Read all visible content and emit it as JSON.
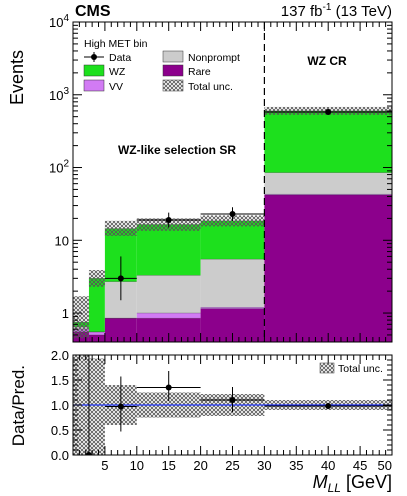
{
  "header": {
    "experiment": "CMS",
    "lumi_prefix": "137 fb",
    "lumi_exp": "-1",
    "lumi_suffix": " (13 TeV)"
  },
  "colors": {
    "WZ": "#1de01d",
    "VV": "#d27bf4",
    "Nonprompt": "#cccccc",
    "Rare": "#8c008c",
    "ratio_line": "#1a2ef5",
    "data": "#000000"
  },
  "legend": {
    "title": "High MET bin",
    "entries": [
      {
        "key": "Data",
        "label": "Data",
        "kind": "marker"
      },
      {
        "key": "Nonprompt",
        "label": "Nonprompt",
        "kind": "fill"
      },
      {
        "key": "WZ",
        "label": "WZ",
        "kind": "fill"
      },
      {
        "key": "Rare",
        "label": "Rare",
        "kind": "fill"
      },
      {
        "key": "VV",
        "label": "VV",
        "kind": "fill"
      },
      {
        "key": "Total",
        "label": "Total unc.",
        "kind": "hatch"
      }
    ]
  },
  "annotations": {
    "sr": "WZ-like selection SR",
    "cr": "WZ CR"
  },
  "chart_data": {
    "type": "bar",
    "stacked": true,
    "ylog": true,
    "xlabel_main": "M",
    "xlabel_sub": "LL",
    "xlabel_unit": " [GeV]",
    "ylabel": "Events",
    "ratio_ylabel": "Data/Pred.",
    "ratio_legend": "Total unc.",
    "xlim": [
      0,
      50
    ],
    "ylim": [
      0.4,
      10000
    ],
    "ratio_ylim": [
      0,
      2
    ],
    "cr_boundary_x": 30,
    "bin_edges": [
      0,
      2.5,
      5,
      10,
      20,
      30,
      50
    ],
    "series": [
      {
        "name": "Rare",
        "values": [
          0.55,
          0.5,
          0.85,
          0.85,
          1.15,
          42
        ]
      },
      {
        "name": "VV",
        "values": [
          0.6,
          0.55,
          0.85,
          1.0,
          1.2,
          43
        ]
      },
      {
        "name": "Nonprompt",
        "values": [
          0.65,
          0.55,
          2.7,
          3.3,
          5.5,
          85
        ]
      },
      {
        "name": "WZ",
        "values": [
          0.75,
          3.0,
          14.5,
          16.5,
          18.5,
          600
        ]
      }
    ],
    "total_unc": [
      {
        "lo": 0.45,
        "hi": 1.7
      },
      {
        "lo": 2.3,
        "hi": 3.9
      },
      {
        "lo": 11.5,
        "hi": 18.5
      },
      {
        "lo": 13.5,
        "hi": 20.0
      },
      {
        "lo": 15.5,
        "hi": 22.0
      },
      {
        "lo": 530,
        "hi": 680
      }
    ],
    "data_points": [
      {
        "x": 7.5,
        "y": 3.0,
        "ylo": 1.5,
        "yhi": 6.0,
        "xerr": 2.5
      },
      {
        "x": 15,
        "y": 19.0,
        "ylo": 15.0,
        "yhi": 24.0,
        "xerr": 5
      },
      {
        "x": 25,
        "y": 23.0,
        "ylo": 18.5,
        "yhi": 28.5,
        "xerr": 5
      },
      {
        "x": 40,
        "y": 580,
        "ylo": 555,
        "yhi": 605,
        "xerr": 10
      }
    ],
    "ratio_points": [
      {
        "x": 2.5,
        "y": 0.0,
        "ylo": 0.0,
        "yhi": 2.0,
        "xerr": 0
      },
      {
        "x": 7.5,
        "y": 0.97,
        "ylo": 0.47,
        "yhi": 1.57,
        "xerr": 2.5
      },
      {
        "x": 15,
        "y": 1.35,
        "ylo": 1.08,
        "yhi": 1.68,
        "xerr": 5
      },
      {
        "x": 25,
        "y": 1.1,
        "ylo": 0.86,
        "yhi": 1.36,
        "xerr": 5
      },
      {
        "x": 40,
        "y": 0.98,
        "ylo": 0.94,
        "yhi": 1.02,
        "xerr": 10
      }
    ],
    "ratio_unc": [
      {
        "lo": 0.0,
        "hi": 2.0
      },
      {
        "lo": 0.0,
        "hi": 1.93
      },
      {
        "lo": 0.6,
        "hi": 1.4
      },
      {
        "lo": 0.75,
        "hi": 1.25
      },
      {
        "lo": 0.78,
        "hi": 1.22
      },
      {
        "lo": 0.9,
        "hi": 1.1
      }
    ],
    "y_ticks": [
      {
        "value": 1,
        "label": "1"
      },
      {
        "value": 10,
        "label": "10"
      },
      {
        "value": 100,
        "base": "10",
        "exp": "2"
      },
      {
        "value": 1000,
        "base": "10",
        "exp": "3"
      },
      {
        "value": 10000,
        "base": "10",
        "exp": "4"
      }
    ],
    "ratio_ticks": [
      {
        "value": 0,
        "label": "0.0"
      },
      {
        "value": 0.5,
        "label": "0.5"
      },
      {
        "value": 1.0,
        "label": "1.0"
      },
      {
        "value": 1.5,
        "label": "1.5"
      },
      {
        "value": 2.0,
        "label": "2.0"
      }
    ],
    "x_ticks": [
      {
        "value": 5,
        "label": "5"
      },
      {
        "value": 10,
        "label": "10"
      },
      {
        "value": 15,
        "label": "15"
      },
      {
        "value": 20,
        "label": "20"
      },
      {
        "value": 25,
        "label": "25"
      },
      {
        "value": 30,
        "label": "30"
      },
      {
        "value": 35,
        "label": "35"
      },
      {
        "value": 40,
        "label": "40"
      },
      {
        "value": 45,
        "label": "45"
      },
      {
        "value": 50,
        "label": "50"
      }
    ]
  }
}
